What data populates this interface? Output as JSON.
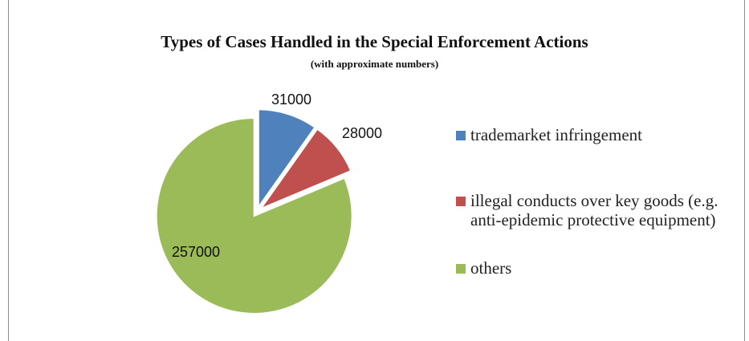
{
  "chart_data": {
    "type": "pie",
    "title": "Types of Cases Handled in the Special Enforcement Actions",
    "subtitle": "(with approximate numbers)",
    "categories": [
      "trademarket infringement",
      "illegal conducts over key goods (e.g. anti-epidemic protective equipment)",
      "others"
    ],
    "values": [
      31000,
      28000,
      257000
    ],
    "data_labels": [
      "31000",
      "28000",
      "257000"
    ],
    "colors": [
      "#4f81bd",
      "#c0504d",
      "#9bbb59"
    ],
    "exploded": "all slices",
    "legend": "right"
  },
  "legend": {
    "items": [
      {
        "label": "trademarket infringement",
        "color": "#4f81bd"
      },
      {
        "label": "illegal conducts over key goods (e.g. anti-epidemic protective equipment)",
        "color": "#c0504d"
      },
      {
        "label": "others",
        "color": "#9bbb59"
      }
    ]
  }
}
